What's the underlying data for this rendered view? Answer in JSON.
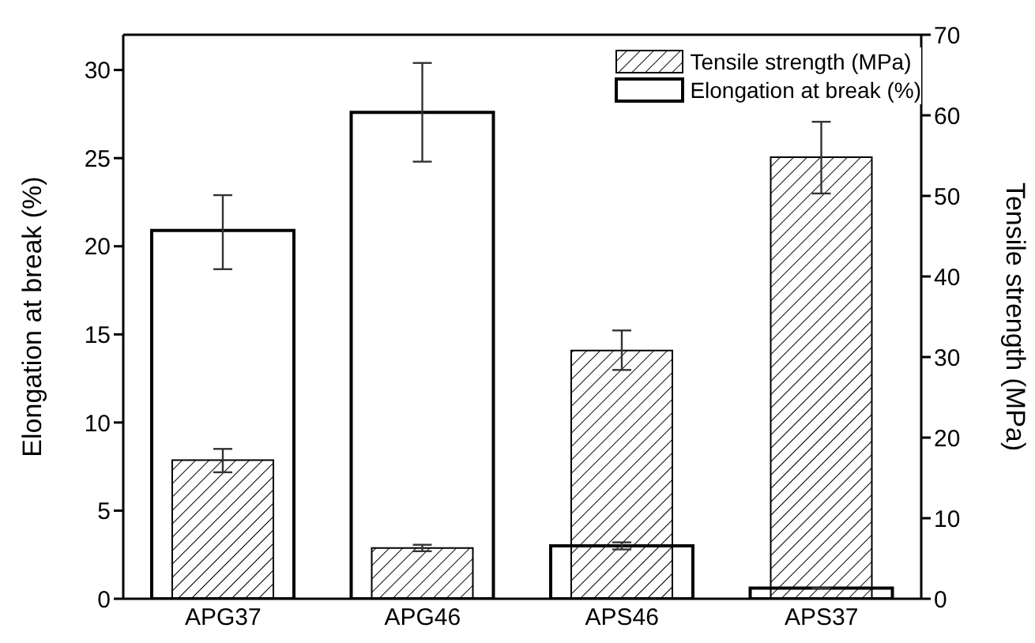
{
  "chart_data": {
    "type": "bar",
    "categories": [
      "APG37",
      "APG46",
      "APS46",
      "APS37"
    ],
    "ylabel": "Elongation at break (%)",
    "y2label": "Tensile strength (MPa)",
    "ylim": [
      0,
      32
    ],
    "yticks": [
      0,
      5,
      10,
      15,
      20,
      25,
      30
    ],
    "y2lim": [
      0,
      70
    ],
    "y2ticks": [
      0,
      10,
      20,
      30,
      40,
      50,
      60,
      70
    ],
    "legend": "top right",
    "series": [
      {
        "name": "Tensile strength (MPa)",
        "color": "#000000",
        "axis": "y2",
        "values": [
          17.2,
          6.3,
          30.8,
          54.8
        ],
        "errors": [
          [
            15.7,
            18.6
          ],
          [
            5.9,
            6.7
          ],
          [
            28.4,
            33.3
          ],
          [
            50.3,
            59.2
          ]
        ]
      },
      {
        "name": "Elongation at break (%)",
        "color": "#000000",
        "values": [
          20.9,
          27.6,
          3.0,
          0.6
        ],
        "errors": [
          [
            18.7,
            22.9
          ],
          [
            24.8,
            30.4
          ],
          [
            2.8,
            3.2
          ],
          null
        ]
      }
    ]
  }
}
